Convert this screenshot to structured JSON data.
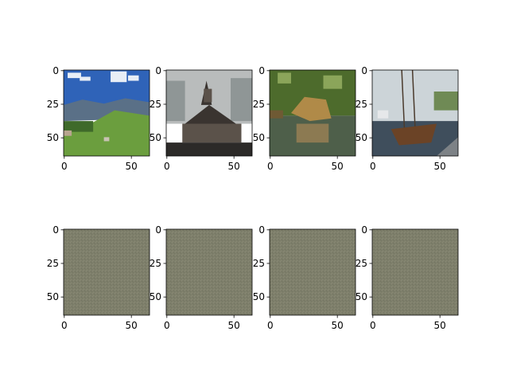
{
  "figure": {
    "background": "#ffffff"
  },
  "chart_data": {
    "type": "image-grid",
    "rows": 2,
    "cols": 4,
    "xlim": [
      0,
      64
    ],
    "ylim": [
      64,
      0
    ],
    "xticks": [
      0,
      50
    ],
    "yticks": [
      0,
      25,
      50
    ],
    "panels": [
      {
        "row": 0,
        "col": 0,
        "content": "photo",
        "subject": "mountain-meadow",
        "palette": {
          "sky": "#2f63b8",
          "cloud": "#e8eef6",
          "mount": "#5a7087",
          "grass": "#6b9e3e",
          "dark": "#3f6a2a"
        }
      },
      {
        "row": 0,
        "col": 1,
        "content": "photo",
        "subject": "wooden-church",
        "palette": {
          "sky": "#b9bcbc",
          "cloud": "#8f9696",
          "roof": "#3a3430",
          "wall": "#5b524a",
          "ground": "#2c2a28"
        }
      },
      {
        "row": 0,
        "col": 2,
        "content": "photo",
        "subject": "lion-at-water",
        "palette": {
          "tree": "#4d6b2c",
          "light": "#8ba55a",
          "lion": "#b08a48",
          "water": "#4e5f4a",
          "reflect": "#8c7a52"
        }
      },
      {
        "row": 0,
        "col": 3,
        "content": "photo",
        "subject": "sailboat-harbor",
        "palette": {
          "sky": "#ccd4d8",
          "boat": "#6b4326",
          "water": "#3f4e5c",
          "dock": "#7d8286",
          "green": "#6f8a55"
        }
      },
      {
        "row": 1,
        "col": 0,
        "content": "noise",
        "fill": "#7e7f6b"
      },
      {
        "row": 1,
        "col": 1,
        "content": "noise",
        "fill": "#7e7f6b"
      },
      {
        "row": 1,
        "col": 2,
        "content": "noise",
        "fill": "#7e7f6b"
      },
      {
        "row": 1,
        "col": 3,
        "content": "noise",
        "fill": "#7e7f6b"
      }
    ]
  }
}
